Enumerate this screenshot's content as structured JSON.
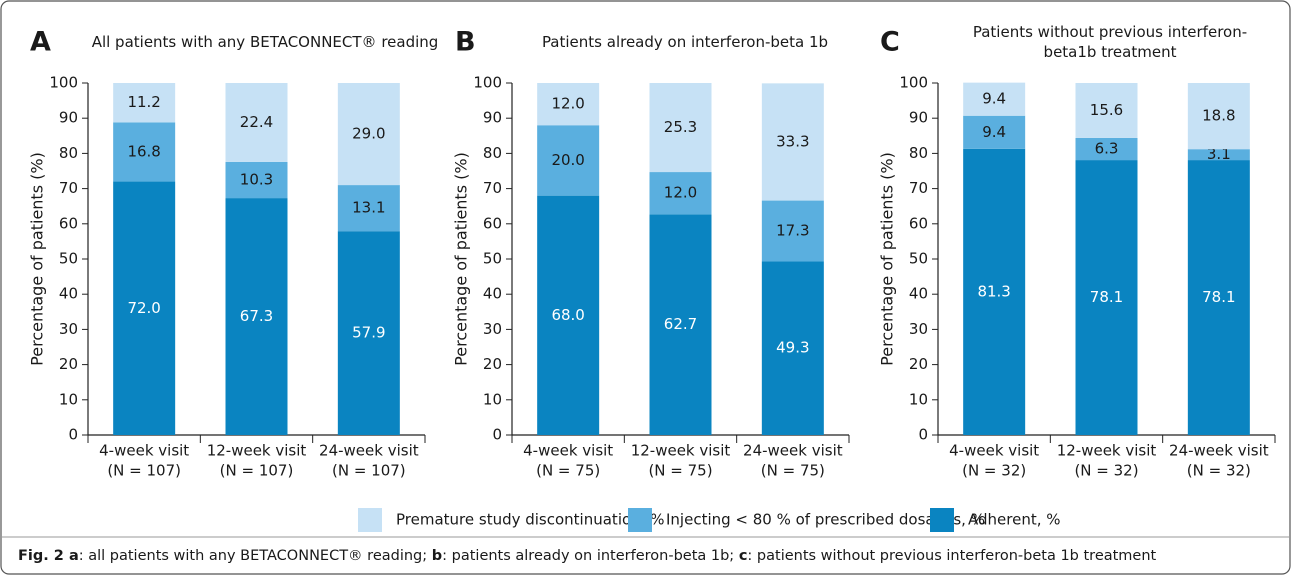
{
  "chart_data": [
    {
      "type": "bar",
      "stacked": true,
      "panel": "A",
      "title": "All patients with any BETACONNECT® reading",
      "y_label": "Percentage of patients (%)",
      "categories": [
        "4-week visit",
        "12-week visit",
        "24-week visit"
      ],
      "category_counts": [
        "(N = 107)",
        "(N = 107)",
        "(N = 107)"
      ],
      "ylim": [
        0,
        100
      ],
      "yticks": [
        0,
        10,
        20,
        30,
        40,
        50,
        60,
        70,
        80,
        90,
        100
      ],
      "grid": false,
      "series": [
        {
          "name": "Adherent, %",
          "color": "#0a84c1",
          "label_color": "#ffffff",
          "values": [
            72.0,
            67.3,
            57.9
          ],
          "value_labels": [
            "72.0",
            "67.3",
            "57.9"
          ]
        },
        {
          "name": "Injecting < 80 % of prescribed dosages, %",
          "color": "#5aafdf",
          "label_color": "#1a1a1a",
          "values": [
            16.8,
            10.3,
            13.1
          ],
          "value_labels": [
            "16.8",
            "10.3",
            "13.1"
          ]
        },
        {
          "name": "Premature study discontinuation, %",
          "color": "#c6e1f5",
          "label_color": "#1a1a1a",
          "values": [
            11.2,
            22.4,
            29.0
          ],
          "value_labels": [
            "11.2",
            "22.4",
            "29.0"
          ]
        }
      ]
    },
    {
      "type": "bar",
      "stacked": true,
      "panel": "B",
      "title": "Patients already on interferon-beta 1b",
      "y_label": "Percentage of patients (%)",
      "categories": [
        "4-week visit",
        "12-week visit",
        "24-week visit"
      ],
      "category_counts": [
        "(N = 75)",
        "(N = 75)",
        "(N = 75)"
      ],
      "ylim": [
        0,
        100
      ],
      "yticks": [
        0,
        10,
        20,
        30,
        40,
        50,
        60,
        70,
        80,
        90,
        100
      ],
      "grid": false,
      "series": [
        {
          "name": "Adherent, %",
          "color": "#0a84c1",
          "label_color": "#ffffff",
          "values": [
            68.0,
            62.7,
            49.3
          ],
          "value_labels": [
            "68.0",
            "62.7",
            "49.3"
          ]
        },
        {
          "name": "Injecting < 80 % of prescribed dosages, %",
          "color": "#5aafdf",
          "label_color": "#1a1a1a",
          "values": [
            20.0,
            12.0,
            17.3
          ],
          "value_labels": [
            "20.0",
            "12.0",
            "17.3"
          ]
        },
        {
          "name": "Premature study discontinuation, %",
          "color": "#c6e1f5",
          "label_color": "#1a1a1a",
          "values": [
            12.0,
            25.3,
            33.3
          ],
          "value_labels": [
            "12.0",
            "25.3",
            "33.3"
          ]
        }
      ]
    },
    {
      "type": "bar",
      "stacked": true,
      "panel": "C",
      "title": "Patients without previous interferon-\nbeta1b treatment",
      "y_label": "Percentage of patients (%)",
      "categories": [
        "4-week visit",
        "12-week visit",
        "24-week visit"
      ],
      "category_counts": [
        "(N = 32)",
        "(N = 32)",
        "(N = 32)"
      ],
      "ylim": [
        0,
        100
      ],
      "yticks": [
        0,
        10,
        20,
        30,
        40,
        50,
        60,
        70,
        80,
        90,
        100
      ],
      "grid": false,
      "series": [
        {
          "name": "Adherent, %",
          "color": "#0a84c1",
          "label_color": "#ffffff",
          "values": [
            81.3,
            78.1,
            78.1
          ],
          "value_labels": [
            "81.3",
            "78.1",
            "78.1"
          ]
        },
        {
          "name": "Injecting < 80 % of prescribed dosages, %",
          "color": "#5aafdf",
          "label_color": "#1a1a1a",
          "values": [
            9.4,
            6.3,
            3.1
          ],
          "value_labels": [
            "9.4",
            "6.3",
            "3.1"
          ]
        },
        {
          "name": "Premature study discontinuation, %",
          "color": "#c6e1f5",
          "label_color": "#1a1a1a",
          "values": [
            9.4,
            15.6,
            18.8
          ],
          "value_labels": [
            "9.4",
            "15.6",
            "18.8"
          ]
        }
      ]
    }
  ],
  "caption": [
    {
      "text": "Fig. 2 a",
      "bold": true
    },
    {
      "text": ": all patients with any BETACONNECT® reading; "
    },
    {
      "text": "b",
      "bold": true
    },
    {
      "text": ": patients already on interferon-beta 1b; "
    },
    {
      "text": "c",
      "bold": true
    },
    {
      "text": ": patients without previous interferon-beta 1b treatment"
    }
  ]
}
